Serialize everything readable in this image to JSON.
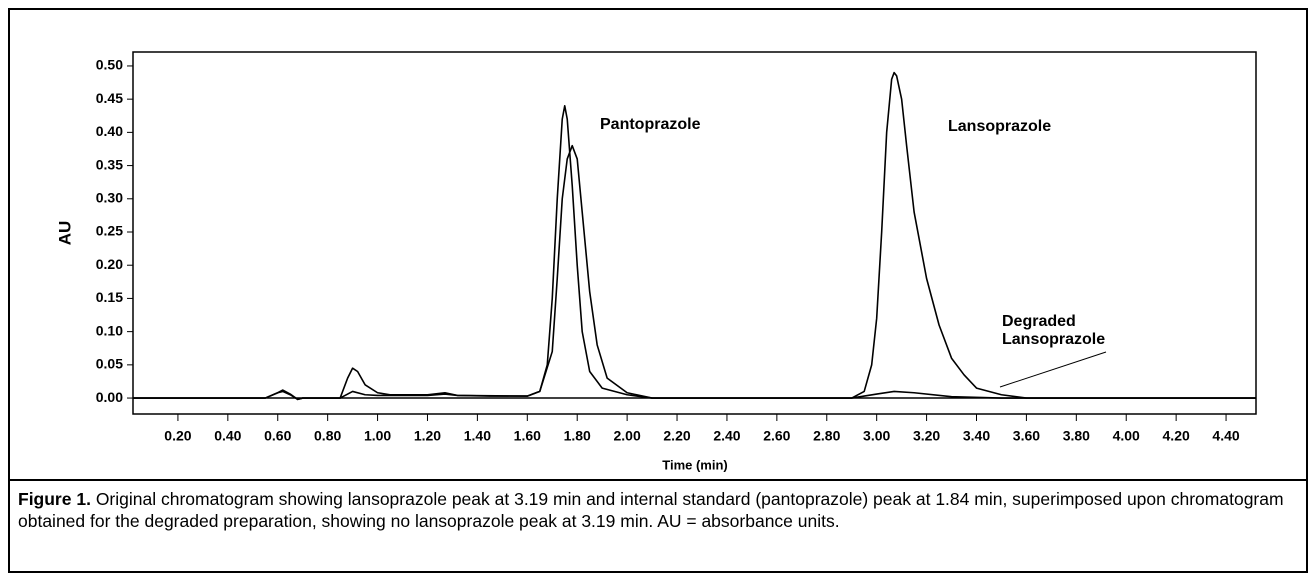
{
  "chart_data": {
    "type": "line",
    "y_label": "AU",
    "x_label": "Time (min)",
    "annotations": [
      "Pantoprazole",
      "Lansoprazole",
      "Degraded Lansoprazole"
    ],
    "xlim": [
      0.02,
      4.52
    ],
    "ylim": [
      -0.024,
      0.521
    ],
    "zero_line": true,
    "xticks": [
      {
        "value": 0.2,
        "label": "0.20"
      },
      {
        "value": 0.4,
        "label": "0.40"
      },
      {
        "value": 0.6,
        "label": "0.60"
      },
      {
        "value": 0.8,
        "label": "0.80"
      },
      {
        "value": 1.0,
        "label": "1.00"
      },
      {
        "value": 1.2,
        "label": "1.20"
      },
      {
        "value": 1.4,
        "label": "1.40"
      },
      {
        "value": 1.6,
        "label": "1.60"
      },
      {
        "value": 1.8,
        "label": "1.80"
      },
      {
        "value": 2.0,
        "label": "2.00"
      },
      {
        "value": 2.2,
        "label": "2.20"
      },
      {
        "value": 2.4,
        "label": "2.40"
      },
      {
        "value": 2.6,
        "label": "2.60"
      },
      {
        "value": 2.8,
        "label": "2.80"
      },
      {
        "value": 3.0,
        "label": "3.00"
      },
      {
        "value": 3.2,
        "label": "3.20"
      },
      {
        "value": 3.4,
        "label": "3.40"
      },
      {
        "value": 3.6,
        "label": "3.60"
      },
      {
        "value": 3.8,
        "label": "3.80"
      },
      {
        "value": 4.0,
        "label": "4.00"
      },
      {
        "value": 4.2,
        "label": "4.20"
      },
      {
        "value": 4.4,
        "label": "4.40"
      }
    ],
    "yticks": [
      {
        "value": 0,
        "label": "0.00"
      },
      {
        "value": 0.05,
        "label": "0.05"
      },
      {
        "value": 0.1,
        "label": "0.10"
      },
      {
        "value": 0.15,
        "label": "0.15"
      },
      {
        "value": 0.2,
        "label": "0.20"
      },
      {
        "value": 0.25,
        "label": "0.25"
      },
      {
        "value": 0.3,
        "label": "0.30"
      },
      {
        "value": 0.35,
        "label": "0.35"
      },
      {
        "value": 0.4,
        "label": "0.40"
      },
      {
        "value": 0.45,
        "label": "0.45"
      },
      {
        "value": 0.5,
        "label": "0.50"
      }
    ],
    "series": [
      {
        "color": "#000000",
        "x": [
          0.02,
          0.55,
          0.6,
          0.62,
          0.65,
          0.68,
          0.7,
          0.85,
          0.88,
          0.9,
          0.92,
          0.95,
          1.0,
          1.05,
          1.2,
          1.27,
          1.32,
          1.45,
          1.6,
          1.65,
          1.68,
          1.7,
          1.72,
          1.74,
          1.75,
          1.76,
          1.78,
          1.8,
          1.82,
          1.85,
          1.9,
          2.0,
          2.1,
          2.9,
          2.95,
          2.98,
          3.0,
          3.02,
          3.04,
          3.06,
          3.07,
          3.08,
          3.1,
          3.12,
          3.15,
          3.2,
          3.25,
          3.3,
          3.35,
          3.4,
          3.5,
          3.6,
          4.52
        ],
        "values": [
          0,
          0,
          0.008,
          0.012,
          0.006,
          -0.002,
          0,
          0,
          0.03,
          0.045,
          0.04,
          0.02,
          0.008,
          0.005,
          0.005,
          0.008,
          0.004,
          0.003,
          0.003,
          0.01,
          0.05,
          0.15,
          0.3,
          0.42,
          0.44,
          0.42,
          0.32,
          0.2,
          0.1,
          0.04,
          0.015,
          0.005,
          0,
          0,
          0.01,
          0.05,
          0.12,
          0.25,
          0.4,
          0.48,
          0.49,
          0.485,
          0.45,
          0.38,
          0.28,
          0.18,
          0.11,
          0.06,
          0.035,
          0.015,
          0.005,
          0,
          0
        ]
      },
      {
        "color": "#000000",
        "x": [
          0.02,
          0.55,
          0.6,
          0.62,
          0.65,
          0.68,
          0.7,
          0.85,
          0.9,
          0.95,
          1.0,
          1.2,
          1.27,
          1.32,
          1.6,
          1.65,
          1.7,
          1.72,
          1.74,
          1.76,
          1.78,
          1.8,
          1.82,
          1.85,
          1.88,
          1.92,
          2.0,
          2.1,
          2.9,
          3.0,
          3.07,
          3.15,
          3.3,
          3.5,
          4.52
        ],
        "values": [
          0,
          0,
          0.008,
          0.01,
          0.005,
          -0.002,
          0,
          0,
          0.01,
          0.005,
          0.004,
          0.004,
          0.006,
          0.004,
          0.003,
          0.01,
          0.07,
          0.18,
          0.3,
          0.36,
          0.38,
          0.36,
          0.28,
          0.16,
          0.08,
          0.03,
          0.008,
          0,
          0,
          0.006,
          0.01,
          0.008,
          0.002,
          0,
          0
        ]
      }
    ]
  },
  "caption": {
    "label": "Figure 1.",
    "text": "Original chromatogram showing lansoprazole peak at 3.19 min and internal standard (pantoprazole) peak at 1.84 min, superimposed upon chromatogram obtained for the degraded preparation, showing no lansoprazole peak at 3.19 min. AU = absorbance units."
  }
}
